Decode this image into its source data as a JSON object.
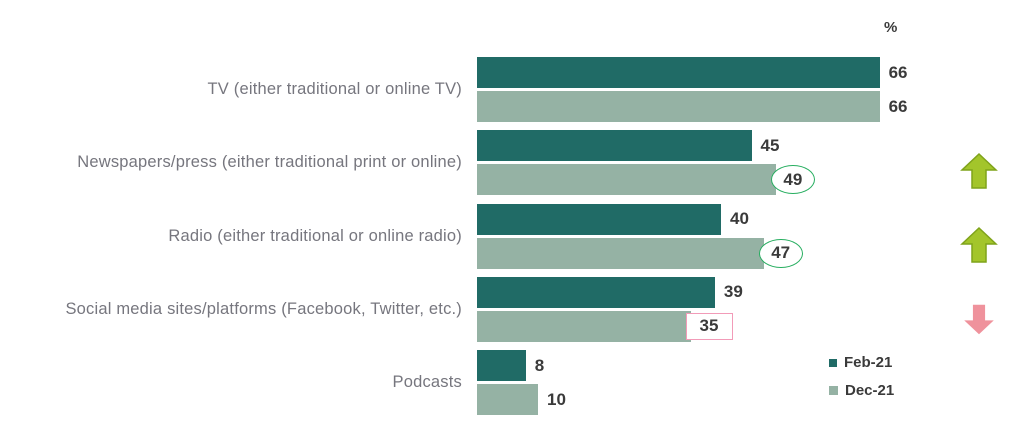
{
  "unit_label": "%",
  "colors": {
    "feb21_bar": "#206B66",
    "dec21_bar": "#95B2A4",
    "ellipse_stroke": "#27AE60",
    "box_border": "#F29BB8",
    "arrow_up_fill": "#A3C52B",
    "arrow_up_stroke": "#7FA31A",
    "arrow_down_fill": "#EF929C",
    "category_label_text": "#76767E",
    "value_text": "#3A3A3A"
  },
  "legend": {
    "position": "bottom-right",
    "items": [
      {
        "label": "Feb-21",
        "color": "#206B66"
      },
      {
        "label": "Dec-21",
        "color": "#95B2A4"
      }
    ]
  },
  "chart_data": {
    "type": "bar",
    "orientation": "horizontal",
    "title": "",
    "xlabel": "%",
    "ylabel": "",
    "xlim": [
      0,
      70
    ],
    "grid": false,
    "value_labels": true,
    "legend_position": "bottom-right",
    "categories": [
      "TV (either traditional or online TV)",
      "Newspapers/press (either traditional print or online)",
      "Radio (either traditional or online radio)",
      "Social media sites/platforms (Facebook, Twitter, etc.)",
      "Podcasts"
    ],
    "series": [
      {
        "name": "Feb-21",
        "color": "#206B66",
        "values": [
          66,
          45,
          40,
          39,
          8
        ]
      },
      {
        "name": "Dec-21",
        "color": "#95B2A4",
        "values": [
          66,
          49,
          47,
          35,
          10
        ]
      }
    ],
    "annotations": [
      {
        "series_index": 1,
        "category_index": 1,
        "value": 49,
        "shape": "ellipse",
        "color": "#27AE60",
        "meaning": "highlighted-increase"
      },
      {
        "series_index": 1,
        "category_index": 2,
        "value": 47,
        "shape": "ellipse",
        "color": "#27AE60",
        "meaning": "highlighted-increase"
      },
      {
        "series_index": 1,
        "category_index": 3,
        "value": 35,
        "shape": "rect",
        "color": "#F29BB8",
        "meaning": "highlighted-decrease"
      }
    ],
    "trend_arrows": [
      {
        "category_index": 1,
        "direction": "up",
        "fill": "#A3C52B",
        "stroke": "#7FA31A"
      },
      {
        "category_index": 2,
        "direction": "up",
        "fill": "#A3C52B",
        "stroke": "#7FA31A"
      },
      {
        "category_index": 3,
        "direction": "down",
        "fill": "#EF929C",
        "stroke": "none"
      }
    ]
  }
}
